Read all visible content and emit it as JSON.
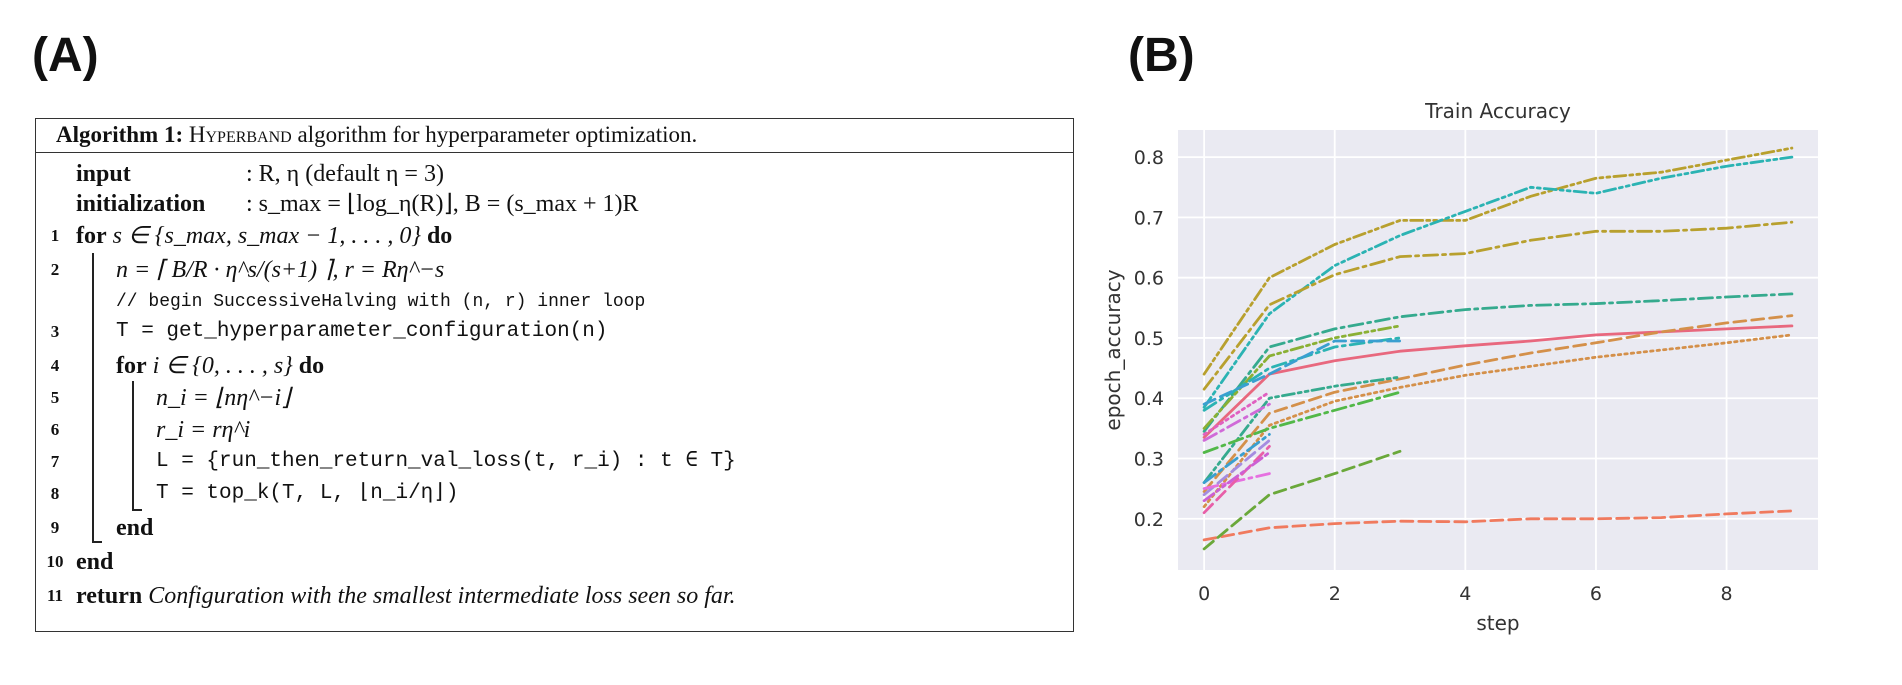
{
  "panels": {
    "a_label": "(A)",
    "b_label": "(B)"
  },
  "algorithm": {
    "header_bold": "Algorithm 1:",
    "header_name": "Hyperband",
    "header_rest": "algorithm for hyperparameter optimization.",
    "lines": [
      {
        "num": "",
        "kw": "input",
        "text": ": R, η (default η = 3)"
      },
      {
        "num": "",
        "kw": "initialization",
        "text": ": s_max = ⌊log_η(R)⌋, B = (s_max + 1)R"
      },
      {
        "num": "1",
        "kw": "for",
        "text": "s ∈ {s_max, s_max − 1, . . . , 0}",
        "kw2": "do"
      },
      {
        "num": "2",
        "kw": "",
        "text": "n = ⌈ B/R · η^s/(s+1) ⌉,        r = Rη^−s"
      },
      {
        "num": "",
        "kw": "",
        "text": "// begin SuccessiveHalving with (n, r) inner loop"
      },
      {
        "num": "3",
        "kw": "",
        "text": "T = get_hyperparameter_configuration(n)"
      },
      {
        "num": "4",
        "kw": "for",
        "text": "i ∈ {0, . . . , s}",
        "kw2": "do"
      },
      {
        "num": "5",
        "kw": "",
        "text": "n_i = ⌊nη^−i⌋"
      },
      {
        "num": "6",
        "kw": "",
        "text": "r_i = rη^i"
      },
      {
        "num": "7",
        "kw": "",
        "text": "L = {run_then_return_val_loss(t, r_i) : t ∈ T}"
      },
      {
        "num": "8",
        "kw": "",
        "text": "T = top_k(T, L, ⌊n_i/η⌋)"
      },
      {
        "num": "9",
        "kw": "end",
        "text": ""
      },
      {
        "num": "10",
        "kw": "end",
        "text": ""
      },
      {
        "num": "11",
        "kw": "return",
        "text": "Configuration with the smallest intermediate loss seen so far."
      }
    ]
  },
  "chart_data": {
    "type": "line",
    "title": "Train Accuracy",
    "xlabel": "step",
    "ylabel": "epoch_accuracy",
    "xlim": [
      -0.4,
      9.4
    ],
    "ylim": [
      0.115,
      0.845
    ],
    "xticks": [
      0,
      2,
      4,
      6,
      8
    ],
    "yticks": [
      0.2,
      0.3,
      0.4,
      0.5,
      0.6,
      0.7,
      0.8
    ],
    "grid": true,
    "background": "#eaeaf2",
    "series": [
      {
        "color": "#b8a02e",
        "dash": "dashdotdot",
        "x": [
          0,
          1,
          2,
          3,
          4,
          5,
          6,
          7,
          8,
          9
        ],
        "y": [
          0.44,
          0.6,
          0.655,
          0.695,
          0.695,
          0.735,
          0.765,
          0.775,
          0.795,
          0.815
        ]
      },
      {
        "color": "#2bb3b3",
        "dash": "dashdotdot",
        "x": [
          0,
          1,
          2,
          3,
          4,
          5,
          6,
          7,
          8,
          9
        ],
        "y": [
          0.385,
          0.54,
          0.62,
          0.67,
          0.71,
          0.75,
          0.74,
          0.765,
          0.785,
          0.8
        ]
      },
      {
        "color": "#b8a02e",
        "dash": "dashdot",
        "x": [
          0,
          1,
          2,
          3,
          4,
          5,
          6,
          7,
          8,
          9
        ],
        "y": [
          0.415,
          0.555,
          0.605,
          0.635,
          0.64,
          0.662,
          0.677,
          0.677,
          0.682,
          0.692
        ]
      },
      {
        "color": "#35aa8e",
        "dash": "dashdot",
        "x": [
          0,
          1,
          2,
          3,
          4,
          5,
          6,
          7,
          8,
          9
        ],
        "y": [
          0.345,
          0.485,
          0.515,
          0.535,
          0.547,
          0.554,
          0.557,
          0.562,
          0.568,
          0.573
        ]
      },
      {
        "color": "#e8687e",
        "dash": "solid",
        "x": [
          0,
          1,
          2,
          3,
          4,
          5,
          6,
          7,
          8,
          9
        ],
        "y": [
          0.335,
          0.44,
          0.462,
          0.478,
          0.487,
          0.495,
          0.505,
          0.51,
          0.515,
          0.52
        ]
      },
      {
        "color": "#d4904a",
        "dash": "dashed",
        "x": [
          0,
          1,
          2,
          3,
          4,
          5,
          6,
          7,
          8,
          9
        ],
        "y": [
          0.245,
          0.375,
          0.41,
          0.432,
          0.455,
          0.475,
          0.492,
          0.51,
          0.525,
          0.537
        ]
      },
      {
        "color": "#d4904a",
        "dash": "dotted",
        "x": [
          0,
          1,
          2,
          3,
          4,
          5,
          6,
          7,
          8,
          9
        ],
        "y": [
          0.22,
          0.355,
          0.395,
          0.418,
          0.438,
          0.453,
          0.468,
          0.48,
          0.492,
          0.505
        ]
      },
      {
        "color": "#f07a5e",
        "dash": "dashed",
        "x": [
          0,
          1,
          2,
          3,
          4,
          5,
          6,
          7,
          8,
          9
        ],
        "y": [
          0.165,
          0.185,
          0.192,
          0.196,
          0.195,
          0.2,
          0.2,
          0.202,
          0.208,
          0.213
        ]
      },
      {
        "color": "#8ab034",
        "dash": "dashdotdot",
        "x": [
          0,
          1,
          2,
          3
        ],
        "y": [
          0.35,
          0.47,
          0.5,
          0.52
        ]
      },
      {
        "color": "#2bb3b3",
        "dash": "dashdot",
        "x": [
          0,
          1,
          2,
          3
        ],
        "y": [
          0.38,
          0.45,
          0.485,
          0.5
        ]
      },
      {
        "color": "#3a9fd0",
        "dash": "dashed",
        "x": [
          0,
          1,
          2,
          3
        ],
        "y": [
          0.39,
          0.44,
          0.495,
          0.495
        ]
      },
      {
        "color": "#35aa8e",
        "dash": "dashdotdot",
        "x": [
          0,
          1,
          2,
          3
        ],
        "y": [
          0.26,
          0.4,
          0.42,
          0.435
        ]
      },
      {
        "color": "#52b848",
        "dash": "dashdot",
        "x": [
          0,
          1,
          2,
          3
        ],
        "y": [
          0.31,
          0.35,
          0.38,
          0.41
        ]
      },
      {
        "color": "#6aa83a",
        "dash": "dashed",
        "x": [
          0,
          1,
          2,
          3
        ],
        "y": [
          0.15,
          0.24,
          0.275,
          0.312
        ]
      },
      {
        "color": "#3a9fd0",
        "dash": "dashdot",
        "x": [
          0,
          1
        ],
        "y": [
          0.26,
          0.34
        ]
      },
      {
        "color": "#a58ce0",
        "dash": "dashed",
        "x": [
          0,
          1
        ],
        "y": [
          0.24,
          0.33
        ]
      },
      {
        "color": "#d06ad8",
        "dash": "dashdot",
        "x": [
          0,
          1
        ],
        "y": [
          0.33,
          0.39
        ]
      },
      {
        "color": "#e060c0",
        "dash": "dotted",
        "x": [
          0,
          1
        ],
        "y": [
          0.34,
          0.41
        ]
      },
      {
        "color": "#e670e0",
        "dash": "dashdot",
        "x": [
          0,
          1
        ],
        "y": [
          0.25,
          0.275
        ]
      },
      {
        "color": "#e85fa8",
        "dash": "dashed",
        "x": [
          0,
          1
        ],
        "y": [
          0.21,
          0.32
        ]
      },
      {
        "color": "#cc5fd4",
        "dash": "dashdotdot",
        "x": [
          0,
          1
        ],
        "y": [
          0.23,
          0.31
        ]
      }
    ]
  }
}
